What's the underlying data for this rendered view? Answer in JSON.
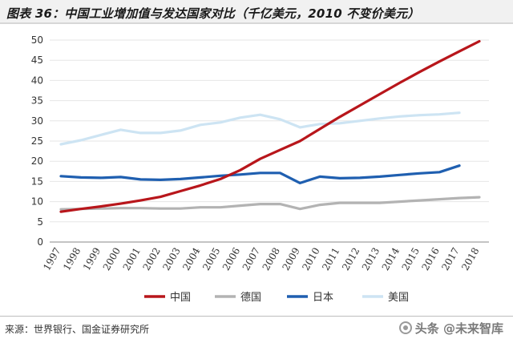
{
  "header": {
    "title": "图表 36：中国工业增加值与发达国家对比（千亿美元，2010 不变价美元）"
  },
  "footer": {
    "source": "来源：世界银行、国金证券研究所",
    "watermark": "头条 @未来智库"
  },
  "chart_data": {
    "type": "line",
    "title": "",
    "xlabel": "",
    "ylabel": "",
    "categories": [
      "1997",
      "1998",
      "1999",
      "2000",
      "2001",
      "2002",
      "2003",
      "2004",
      "2005",
      "2006",
      "2007",
      "2008",
      "2009",
      "2010",
      "2011",
      "2012",
      "2013",
      "2014",
      "2015",
      "2016",
      "2017",
      "2018"
    ],
    "ylim": [
      0,
      50
    ],
    "yticks": [
      0,
      5,
      10,
      15,
      20,
      25,
      30,
      35,
      40,
      45,
      50
    ],
    "grid": "horizontal",
    "legend_position": "bottom",
    "series": [
      {
        "name": "中国",
        "color": "#b8161b",
        "values": [
          7.5,
          8.2,
          8.8,
          9.5,
          10.3,
          11.2,
          12.6,
          14.0,
          15.6,
          17.8,
          20.6,
          22.8,
          25.0,
          28.0,
          31.0,
          33.8,
          36.6,
          39.4,
          42.1,
          44.7,
          47.2,
          49.7
        ]
      },
      {
        "name": "德国",
        "color": "#b3b3b3",
        "values": [
          8.1,
          8.2,
          8.3,
          8.4,
          8.4,
          8.3,
          8.3,
          8.6,
          8.6,
          9.0,
          9.4,
          9.4,
          8.2,
          9.2,
          9.7,
          9.7,
          9.7,
          10.0,
          10.3,
          10.6,
          10.9,
          11.1
        ]
      },
      {
        "name": "日本",
        "color": "#1f5fb0",
        "values": [
          16.3,
          16.0,
          15.9,
          16.1,
          15.5,
          15.4,
          15.6,
          16.0,
          16.4,
          16.7,
          17.1,
          17.1,
          14.6,
          16.2,
          15.8,
          15.9,
          16.2,
          16.6,
          17.0,
          17.3,
          18.9,
          null
        ]
      },
      {
        "name": "美国",
        "color": "#cde4f3",
        "values": [
          24.2,
          25.2,
          26.5,
          27.8,
          27.0,
          27.0,
          27.6,
          29.0,
          29.6,
          30.8,
          31.5,
          30.4,
          28.4,
          29.2,
          29.4,
          30.0,
          30.6,
          31.1,
          31.4,
          31.6,
          32.0,
          null
        ]
      }
    ]
  }
}
